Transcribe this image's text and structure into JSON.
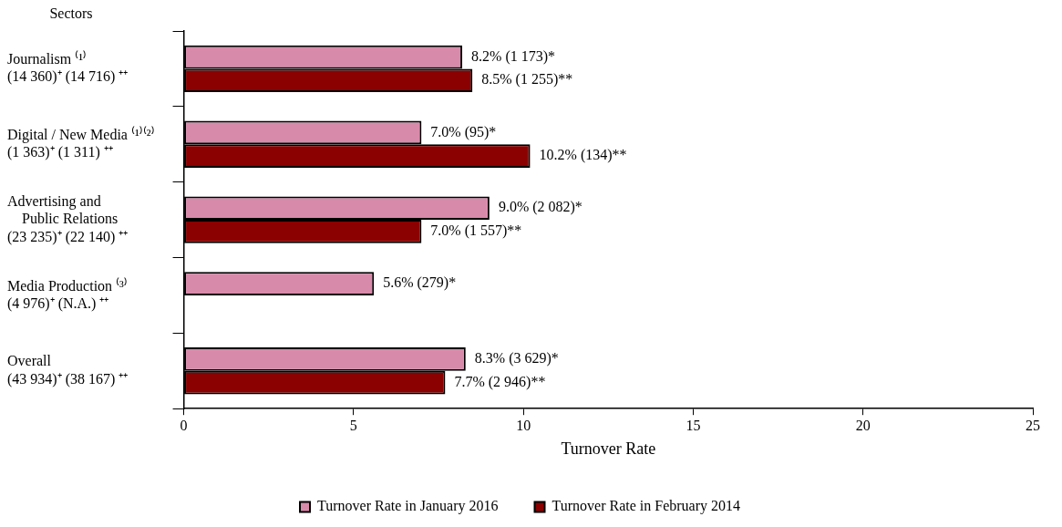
{
  "chart_data": {
    "type": "bar",
    "orientation": "horizontal",
    "ylabel": "Sectors",
    "xlabel": "Turnover Rate",
    "categories": [
      "Journalism ⁽¹⁾\n(14 360)⁺ (14 716) ⁺⁺",
      "Digital / New Media ⁽¹⁾⁽²⁾\n(1 363)⁺ (1 311) ⁺⁺",
      "Advertising and\n    Public Relations\n(23 235)⁺ (22 140) ⁺⁺",
      "Media Production ⁽³⁾\n(4 976)⁺ (N.A.) ⁺⁺",
      "Overall\n(43 934)⁺ (38 167) ⁺⁺"
    ],
    "series": [
      {
        "name": "Turnover Rate in January 2016",
        "color": "#d88aaa",
        "values": [
          8.2,
          7.0,
          9.0,
          5.6,
          8.3
        ],
        "value_labels": [
          "8.2% (1 173)*",
          "7.0% (95)*",
          "9.0% (2 082)*",
          "5.6% (279)*",
          "8.3% (3 629)*"
        ]
      },
      {
        "name": "Turnover Rate in February 2014",
        "color": "#8b0000",
        "values": [
          8.5,
          10.2,
          7.0,
          null,
          7.7
        ],
        "value_labels": [
          "8.5% (1 255)**",
          "10.2% (134)**",
          "7.0% (1 557)**",
          null,
          "7.7% (2 946)**"
        ]
      }
    ],
    "xlim": [
      0,
      25
    ],
    "xticks": [
      0,
      5,
      10,
      15,
      20,
      25
    ],
    "grid": false,
    "legend": "bottom"
  }
}
